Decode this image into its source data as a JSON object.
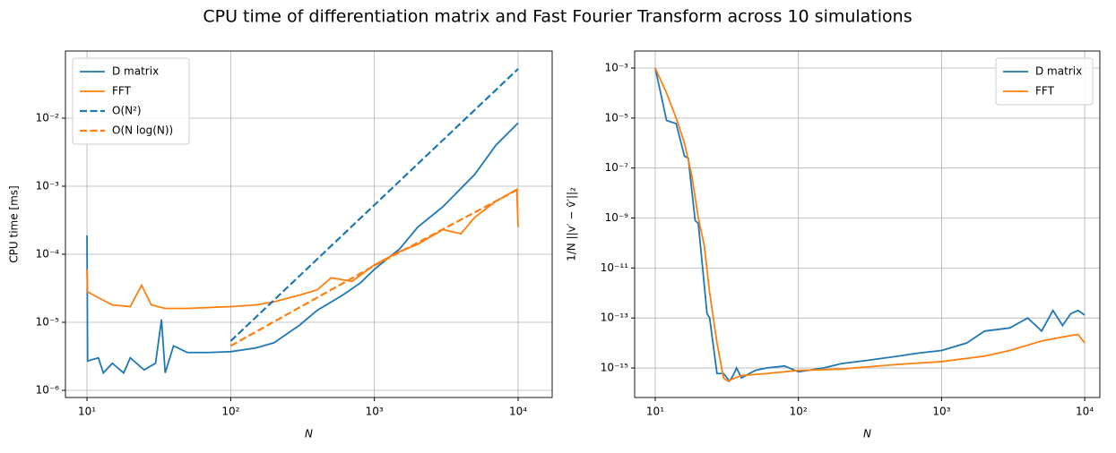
{
  "title": "CPU time of differentiation matrix and Fast Fourier Transform across 10 simulations",
  "chart_data": [
    {
      "type": "line",
      "xlabel": "N",
      "ylabel": "CPU time [ms]",
      "log_x": true,
      "log_y": true,
      "grid": true,
      "legend": "upper left",
      "xlim": [
        7.08,
        17260
      ],
      "ylim": [
        7.85e-07,
        0.097
      ],
      "xticks": [
        {
          "value": 10,
          "label": "10¹"
        },
        {
          "value": 100,
          "label": "10²"
        },
        {
          "value": 1000,
          "label": "10³"
        },
        {
          "value": 10000,
          "label": "10⁴"
        }
      ],
      "yticks": [
        {
          "value": 1e-06,
          "label": "10⁻⁶"
        },
        {
          "value": 1e-05,
          "label": "10⁻⁵"
        },
        {
          "value": 0.0001,
          "label": "10⁻⁴"
        },
        {
          "value": 0.001,
          "label": "10⁻³"
        },
        {
          "value": 0.01,
          "label": "10⁻²"
        }
      ],
      "series": [
        {
          "name": "D matrix",
          "color": "#1f77b4",
          "dashed": false,
          "x": [
            10,
            10.1,
            12,
            13,
            15,
            18,
            20,
            25,
            30,
            33,
            35,
            40,
            50,
            70,
            100,
            150,
            200,
            300,
            400,
            600,
            800,
            1000,
            1500,
            2000,
            3000,
            5000,
            7000,
            10000
          ],
          "values": [
            0.00019,
            2.7e-06,
            3e-06,
            1.8e-06,
            2.5e-06,
            1.8e-06,
            3e-06,
            2e-06,
            2.5e-06,
            1.1e-05,
            1.8e-06,
            4.5e-06,
            3.6e-06,
            3.6e-06,
            3.7e-06,
            4.2e-06,
            5e-06,
            9e-06,
            1.5e-05,
            2.5e-05,
            3.8e-05,
            6e-05,
            0.00012,
            0.00025,
            0.0005,
            0.0015,
            0.004,
            0.0085
          ]
        },
        {
          "name": "FFT",
          "color": "#ff7f0e",
          "dashed": false,
          "x": [
            10,
            10.1,
            12,
            15,
            20,
            24,
            28,
            35,
            50,
            100,
            150,
            200,
            300,
            400,
            500,
            700,
            1000,
            1500,
            2000,
            3000,
            4000,
            5000,
            7000,
            9800,
            10000
          ],
          "values": [
            6e-05,
            2.8e-05,
            2.3e-05,
            1.8e-05,
            1.7e-05,
            3.5e-05,
            1.8e-05,
            1.6e-05,
            1.6e-05,
            1.7e-05,
            1.8e-05,
            2e-05,
            2.5e-05,
            3e-05,
            4.5e-05,
            4e-05,
            7e-05,
            0.00011,
            0.00014,
            0.00023,
            0.0002,
            0.00035,
            0.0006,
            0.0009,
            0.00025
          ]
        },
        {
          "name": "O(N²)",
          "color": "#1f77b4",
          "dashed": true,
          "x": [
            100,
            1000,
            10000
          ],
          "values": [
            5.3e-06,
            0.00053,
            0.053
          ]
        },
        {
          "name": "O(N log(N))",
          "color": "#ff7f0e",
          "dashed": true,
          "x": [
            100,
            1000,
            10000
          ],
          "values": [
            4.5e-06,
            6.8e-05,
            0.0009
          ]
        }
      ]
    },
    {
      "type": "line",
      "xlabel": "N",
      "ylabel": "1/N ||v′ − v̂′||₂",
      "log_x": true,
      "log_y": true,
      "grid": true,
      "legend": "upper right",
      "xlim": [
        7.18,
        12760
      ],
      "ylim": [
        6.6e-17,
        0.0048
      ],
      "xticks": [
        {
          "value": 10,
          "label": "10¹"
        },
        {
          "value": 100,
          "label": "10²"
        },
        {
          "value": 1000,
          "label": "10³"
        },
        {
          "value": 10000,
          "label": "10⁴"
        }
      ],
      "yticks": [
        {
          "value": 1e-15,
          "label": "10⁻¹⁵"
        },
        {
          "value": 1e-13,
          "label": "10⁻¹³"
        },
        {
          "value": 1e-11,
          "label": "10⁻¹¹"
        },
        {
          "value": 1e-09,
          "label": "10⁻⁹"
        },
        {
          "value": 1e-07,
          "label": "10⁻⁷"
        },
        {
          "value": 1e-05,
          "label": "10⁻⁵"
        },
        {
          "value": 0.001,
          "label": "10⁻³"
        }
      ],
      "series": [
        {
          "name": "D matrix",
          "color": "#1f77b4",
          "dashed": false,
          "x": [
            10,
            12,
            14,
            16,
            17,
            19,
            20,
            23,
            24,
            27,
            30,
            33,
            35,
            37,
            40,
            50,
            60,
            80,
            100,
            150,
            200,
            300,
            500,
            700,
            1000,
            1500,
            2000,
            3000,
            4000,
            5000,
            6000,
            7000,
            8000,
            9000,
            10000
          ],
          "values": [
            0.001,
            8e-06,
            6e-06,
            3e-07,
            2.5e-07,
            8e-10,
            6e-10,
            1.5e-13,
            1e-13,
            6e-16,
            6e-16,
            3e-16,
            5e-16,
            1e-15,
            4e-16,
            8e-16,
            1e-15,
            1.2e-15,
            7e-16,
            1e-15,
            1.5e-15,
            2e-15,
            3e-15,
            4e-15,
            5e-15,
            1e-14,
            3e-14,
            4e-14,
            1e-13,
            3e-14,
            2e-13,
            5e-14,
            1.5e-13,
            2e-13,
            1.3e-13
          ]
        },
        {
          "name": "FFT",
          "color": "#ff7f0e",
          "dashed": false,
          "x": [
            10,
            12,
            14,
            16,
            18,
            20,
            22,
            24,
            27,
            30,
            32,
            40,
            60,
            100,
            200,
            300,
            500,
            1000,
            2000,
            3000,
            5000,
            8000,
            9000,
            10000
          ],
          "values": [
            0.001,
            0.0001,
            1e-05,
            1e-06,
            5e-08,
            1e-09,
            8e-11,
            1e-12,
            1e-14,
            4e-16,
            3e-16,
            5e-16,
            6e-16,
            8e-16,
            9e-16,
            1.1e-15,
            1.4e-15,
            1.8e-15,
            3e-15,
            5e-15,
            1.2e-14,
            2e-14,
            2.2e-14,
            1e-14
          ]
        }
      ]
    }
  ]
}
